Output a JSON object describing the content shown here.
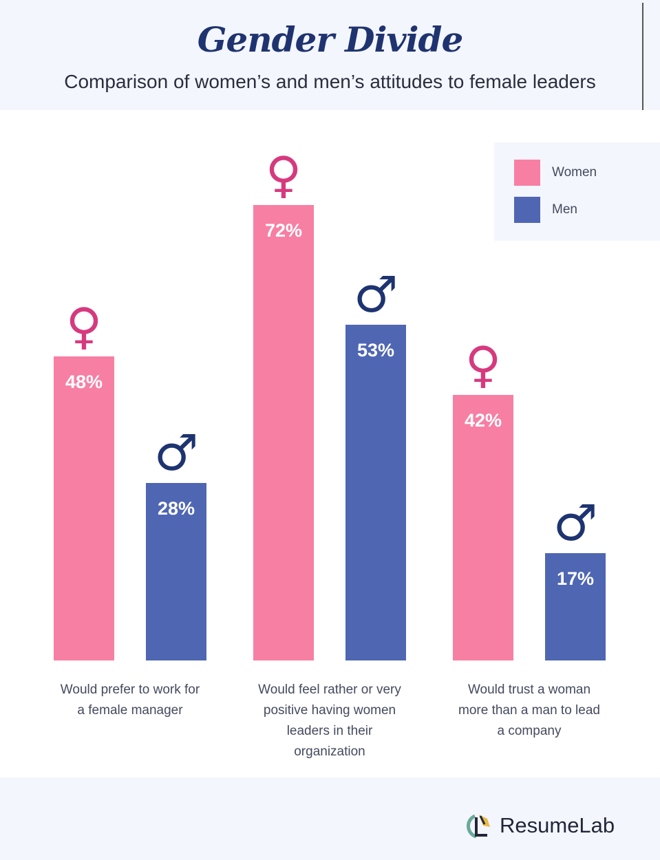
{
  "title": "Gender Divide",
  "subtitle": "Comparison of women’s and men’s attitudes to female leaders",
  "colors": {
    "women": "#f77fa3",
    "men": "#4f66b3",
    "women_symbol": "#d63a7e",
    "men_symbol": "#1e3470",
    "title": "#1f3370"
  },
  "icons": {
    "women": "female-symbol-icon",
    "men": "male-symbol-icon"
  },
  "chart_data": {
    "type": "bar",
    "title": "Gender Divide",
    "subtitle": "Comparison of women’s and men’s attitudes to female leaders",
    "categories": [
      "Would prefer to work for a female manager",
      "Would feel rather or very positive having women leaders in their organization",
      "Would trust a woman more than a man to lead a company"
    ],
    "category_lines": [
      [
        "Would prefer to work for",
        "a female manager"
      ],
      [
        "Would feel rather or very",
        "positive having women",
        "leaders in their",
        "organization"
      ],
      [
        "Would trust a woman",
        "more than a man to lead",
        "a company"
      ]
    ],
    "series": [
      {
        "name": "Women",
        "values": [
          48,
          72,
          42
        ],
        "labels": [
          "48%",
          "72%",
          "42%"
        ]
      },
      {
        "name": "Men",
        "values": [
          28,
          53,
          17
        ],
        "labels": [
          "28%",
          "53%",
          "17%"
        ]
      }
    ],
    "ylim": [
      0,
      80
    ],
    "grid": false,
    "legend": "top-right",
    "unit": "%"
  },
  "legend": {
    "items": [
      {
        "label": "Women"
      },
      {
        "label": "Men"
      }
    ]
  },
  "footer": {
    "brand": "ResumeLab"
  }
}
